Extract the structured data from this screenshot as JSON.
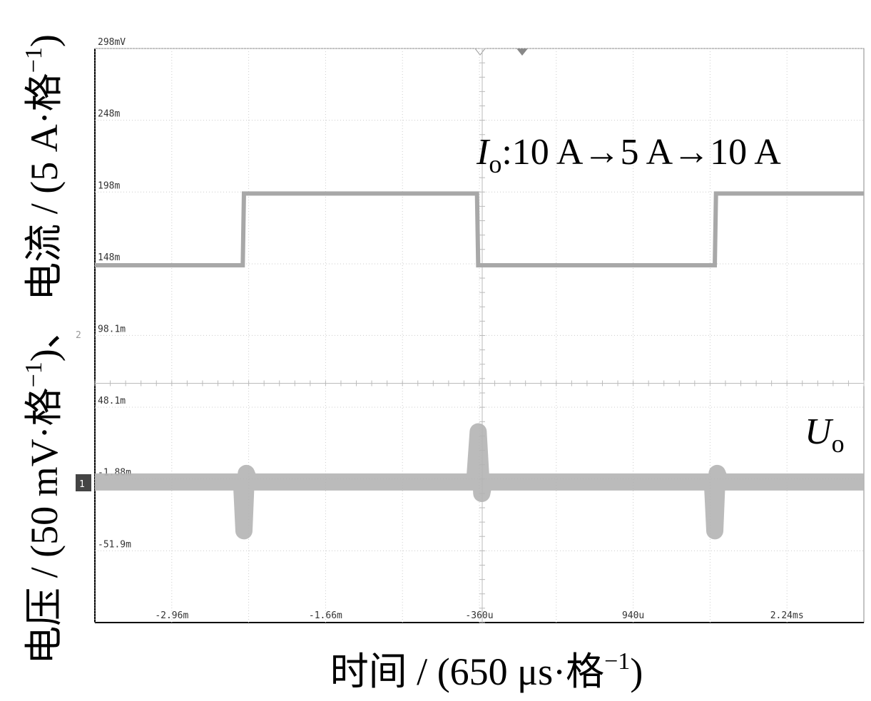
{
  "chart_data": {
    "type": "line",
    "ylabel": {
      "text1": "电压 / (50 mV·格",
      "sup1": "−1",
      "text2": ")、 电流 / (5 A·格",
      "sup2": "−1",
      "text3": ")"
    },
    "xlabel": {
      "text": "时间 / (650 μs·格",
      "sup": "−1",
      "tail": ")"
    },
    "annotations": [
      {
        "symbol": "I",
        "subscript": "o",
        "text": ":10 A→5 A→10 A"
      },
      {
        "symbol": "U",
        "subscript": "o"
      }
    ],
    "channel_markers": [
      "1",
      "2"
    ],
    "xlim": [
      -3610,
      2890
    ],
    "ylim": [
      -101.9,
      298
    ],
    "xticks": [
      {
        "value": -2960,
        "label": "-2.96m"
      },
      {
        "value": -1660,
        "label": "-1.66m"
      },
      {
        "value": -360,
        "label": "-360u"
      },
      {
        "value": 940,
        "label": "940u"
      },
      {
        "value": 2240,
        "label": "2.24ms"
      }
    ],
    "yticks": [
      {
        "value": 298,
        "label": "298mV"
      },
      {
        "value": 248,
        "label": "248m"
      },
      {
        "value": 198,
        "label": "198m"
      },
      {
        "value": 148,
        "label": "148m"
      },
      {
        "value": 98.1,
        "label": "98.1m"
      },
      {
        "value": 48.1,
        "label": "48.1m"
      },
      {
        "value": -1.88,
        "label": "-1.88m"
      },
      {
        "value": -51.9,
        "label": "-51.9m"
      }
    ],
    "grid": true,
    "series": [
      {
        "name": "I",
        "color": "#a8a8a8",
        "x": [
          -3610,
          -2360,
          -2350,
          -380,
          -370,
          1630,
          1640,
          2890
        ],
        "values": [
          147,
          147,
          197,
          197,
          147,
          147,
          197,
          197
        ]
      },
      {
        "name": "U",
        "color": "#b4b4b4",
        "x": [
          -3610,
          -2370,
          -2350,
          -2330,
          -2300,
          -400,
          -370,
          -340,
          -320,
          1610,
          1630,
          1650,
          1680,
          2890
        ],
        "values": [
          -4,
          -4,
          -38,
          2,
          -4,
          -4,
          31,
          -12,
          -4,
          -4,
          -38,
          2,
          -4,
          -4
        ]
      }
    ]
  }
}
